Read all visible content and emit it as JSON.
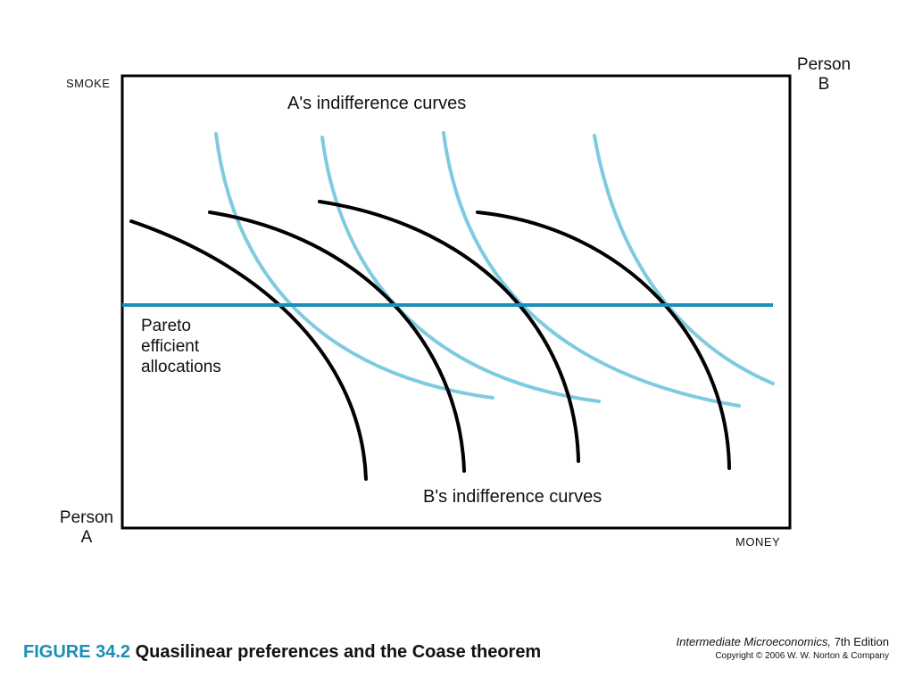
{
  "axes": {
    "y_label": "SMOKE",
    "x_label": "MONEY",
    "origin_a": [
      "Person",
      "A"
    ],
    "origin_b": [
      "Person",
      "B"
    ]
  },
  "labels": {
    "a_curves": "A's indifference curves",
    "b_curves": "B's indifference curves",
    "pareto": [
      "Pareto",
      "efficient",
      "allocations"
    ]
  },
  "caption": {
    "figure_number": "FIGURE 34.2",
    "title": "Quasilinear preferences and the Coase theorem"
  },
  "credit": {
    "book": "Intermediate Microeconomics,",
    "edition": " 7th Edition",
    "copyright": "Copyright © 2006 W. W. Norton & Company"
  },
  "colors": {
    "a_curve": "#7ecbe0",
    "b_curve": "#000000",
    "pareto_line": "#1a8fb8",
    "caption_number": "#1a8fb8"
  },
  "curve_counts": {
    "a_curves": 4,
    "b_curves": 4
  }
}
